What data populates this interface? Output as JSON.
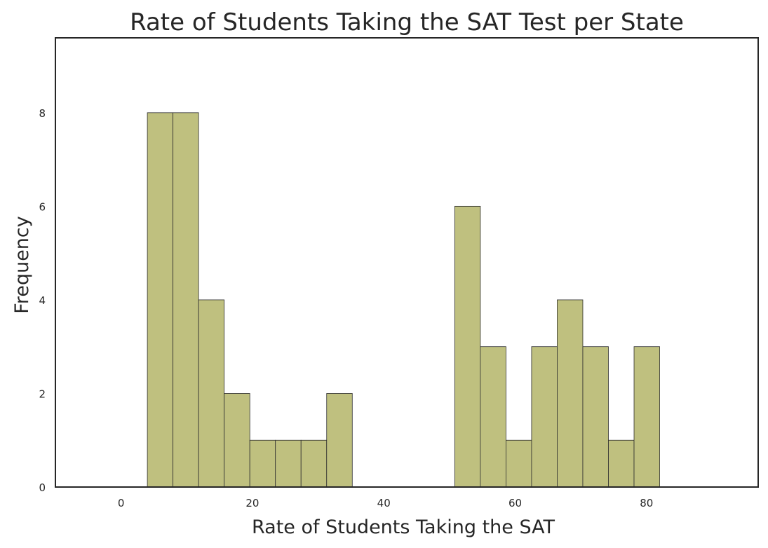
{
  "chart_data": {
    "type": "bar",
    "title": "Rate of Students Taking the SAT Test per State",
    "xlabel": "Rate of Students Taking the SAT",
    "ylabel": "Frequency",
    "xlim": [
      -10,
      97
    ],
    "ylim": [
      0,
      9.6
    ],
    "x_ticks": [
      0,
      20,
      40,
      60,
      80
    ],
    "y_ticks": [
      0,
      2,
      4,
      6,
      8
    ],
    "bin_edges": [
      4,
      7.9,
      11.8,
      15.7,
      19.6,
      23.5,
      27.4,
      31.3,
      35.2,
      39.1,
      43,
      46.9,
      50.8,
      54.7,
      58.6,
      62.5,
      66.4,
      70.3,
      74.2,
      78.1,
      82
    ],
    "values": [
      8,
      8,
      4,
      2,
      1,
      1,
      1,
      2,
      0,
      0,
      0,
      0,
      6,
      3,
      1,
      3,
      4,
      3,
      1,
      3
    ],
    "bar_color": "#bfc07f",
    "edge_color": "#2f2f2f",
    "grid": false
  }
}
